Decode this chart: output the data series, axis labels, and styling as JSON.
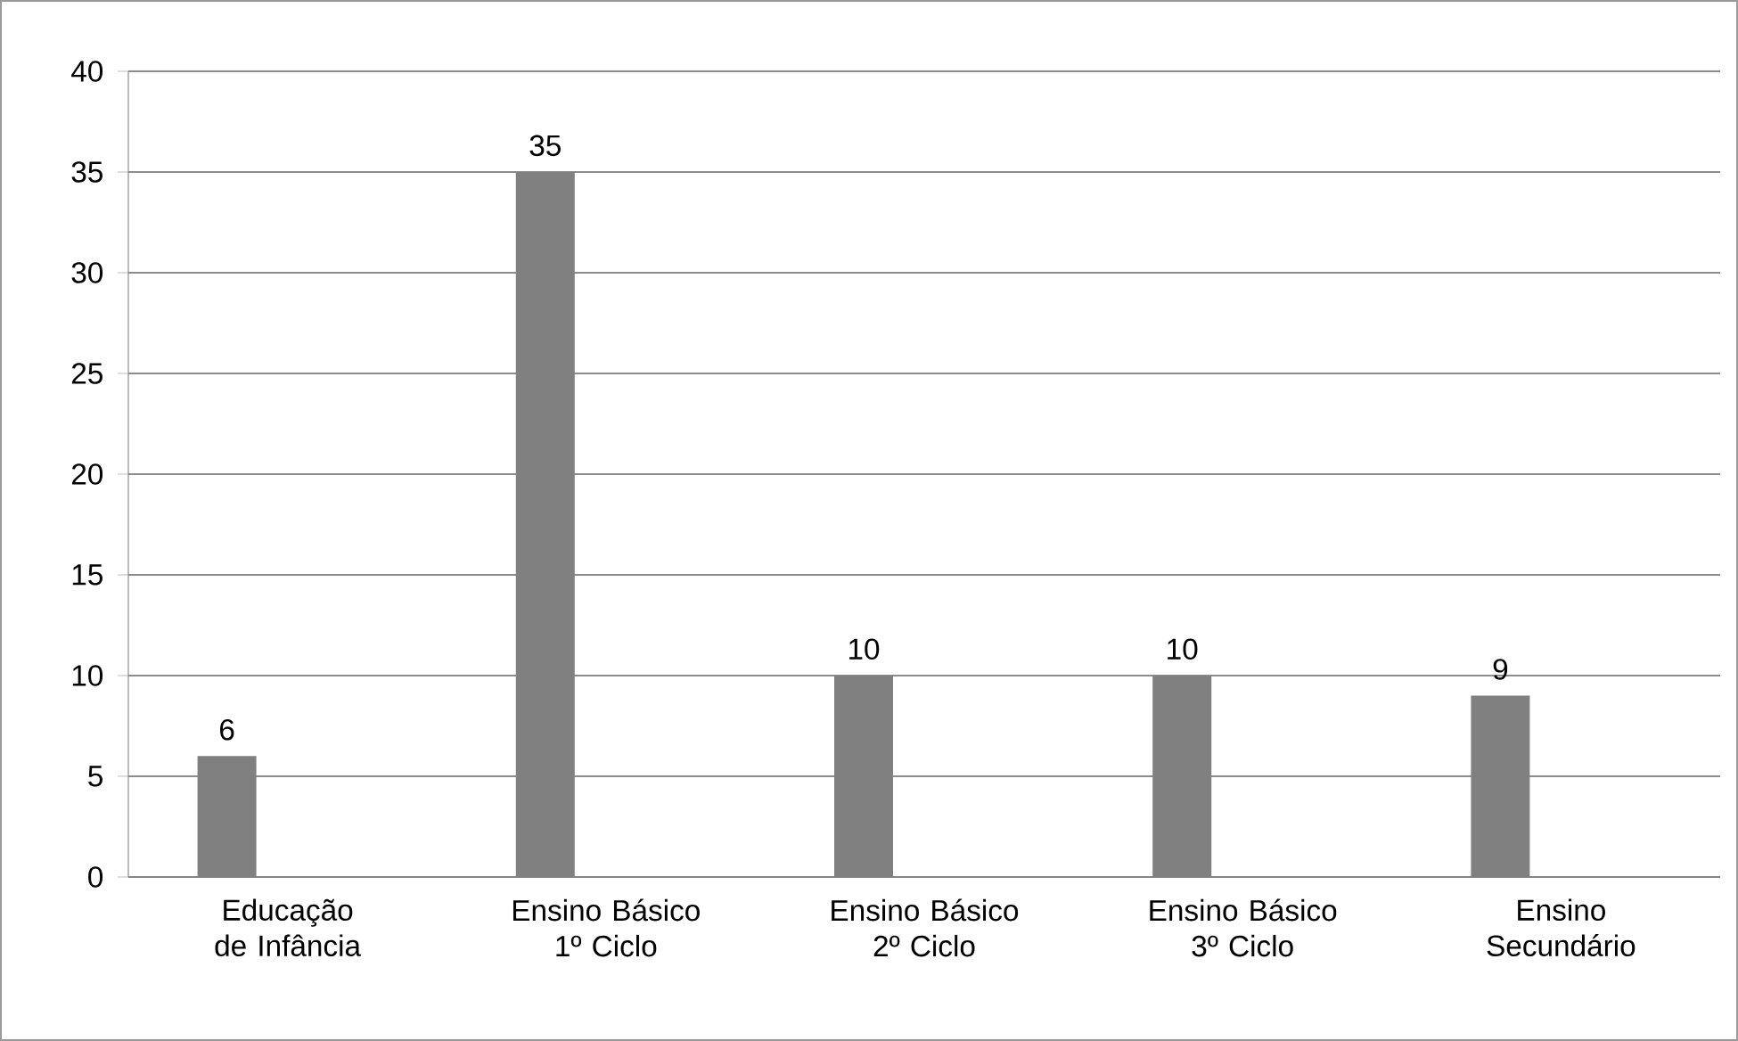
{
  "chart_data": {
    "type": "bar",
    "categories": [
      "Educação de Infância",
      "Ensino Básico 1º Ciclo",
      "Ensino Básico 2º Ciclo",
      "Ensino Básico 3º Ciclo",
      "Ensino Secundário"
    ],
    "values": [
      6,
      35,
      10,
      10,
      9
    ],
    "color": "#808080",
    "ylim": [
      0,
      40
    ],
    "yticks": [
      0,
      5,
      10,
      15,
      20,
      25,
      30,
      35,
      40
    ],
    "grid": "y",
    "data_labels": true
  }
}
